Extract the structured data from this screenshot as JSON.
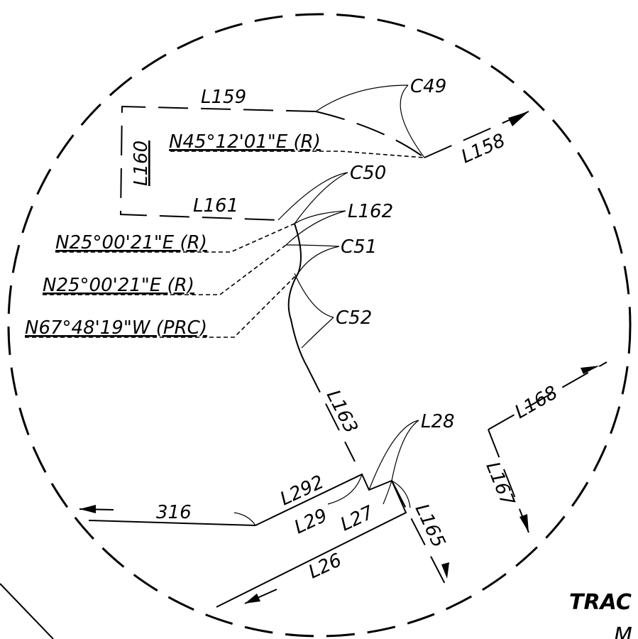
{
  "labels": [
    {
      "text": "L159"
    },
    {
      "text": "C49"
    },
    {
      "text": "N45°12'01\"E (R)"
    },
    {
      "text": "L158"
    },
    {
      "text": "L160"
    },
    {
      "text": "C50"
    },
    {
      "text": "L161"
    },
    {
      "text": "L162"
    },
    {
      "text": "N25°00'21\"E (R)"
    },
    {
      "text": "C51"
    },
    {
      "text": "N25°00'21\"E (R)"
    },
    {
      "text": "C52"
    },
    {
      "text": "N67°48'19\"W (PRC)"
    },
    {
      "text": "L163"
    },
    {
      "text": "L28"
    },
    {
      "text": "L168"
    },
    {
      "text": "L292"
    },
    {
      "text": "L167"
    },
    {
      "text": "316"
    },
    {
      "text": "L29"
    },
    {
      "text": "L27"
    },
    {
      "text": "L165"
    },
    {
      "text": "L26"
    },
    {
      "text": "TRAC"
    },
    {
      "text": "M"
    }
  ]
}
